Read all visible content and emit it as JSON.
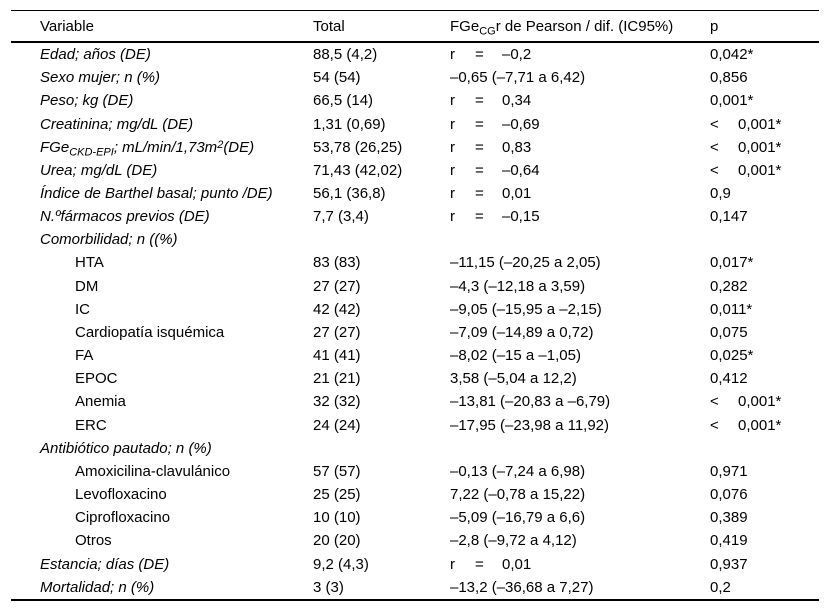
{
  "table": {
    "columns": [
      {
        "id": "variable",
        "label_parts": [
          {
            "t": "Variable"
          }
        ]
      },
      {
        "id": "total",
        "label_parts": [
          {
            "t": "Total"
          }
        ]
      },
      {
        "id": "pearson",
        "label_parts": [
          {
            "t": "FGe"
          },
          {
            "t": "CG",
            "style": "sub"
          },
          {
            "t": "r de Pearson / dif. (IC95%)"
          }
        ]
      },
      {
        "id": "p",
        "label_parts": [
          {
            "t": "p"
          }
        ]
      }
    ],
    "rows": [
      {
        "variable_parts": [
          {
            "t": "Edad; años (DE)"
          }
        ],
        "italic": true,
        "indent": false,
        "total": "88,5 (4,2)",
        "pearson": {
          "r": "r",
          "eq": "=",
          "value": "–0,2"
        },
        "p_parts": [
          "0,042*"
        ]
      },
      {
        "variable_parts": [
          {
            "t": "Sexo mujer; n (%)"
          }
        ],
        "italic": true,
        "indent": false,
        "total": "54 (54)",
        "pearson": {
          "dif": "–0,65 (–7,71 a 6,42)"
        },
        "p_parts": [
          "0,856"
        ]
      },
      {
        "variable_parts": [
          {
            "t": "Peso; kg (DE)"
          }
        ],
        "italic": true,
        "indent": false,
        "total": "66,5 (14)",
        "pearson": {
          "r": "r",
          "eq": "=",
          "value": "0,34"
        },
        "p_parts": [
          "0,001*"
        ]
      },
      {
        "variable_parts": [
          {
            "t": "Creatinina; mg/dL (DE)"
          }
        ],
        "italic": true,
        "indent": false,
        "total": "1,31 (0,69)",
        "pearson": {
          "r": "r",
          "eq": "=",
          "value": "–0,69"
        },
        "p_parts": [
          "<",
          "0,001*"
        ]
      },
      {
        "variable_parts": [
          {
            "t": "FGe"
          },
          {
            "t": "CKD-EPI",
            "style": "sub"
          },
          {
            "t": "; mL/min/1,73m"
          },
          {
            "t": "2",
            "style": "sup"
          },
          {
            "t": "(DE)"
          }
        ],
        "italic": true,
        "indent": false,
        "total": "53,78 (26,25)",
        "pearson": {
          "r": "r",
          "eq": "=",
          "value": "0,83"
        },
        "p_parts": [
          "<",
          "0,001*"
        ]
      },
      {
        "variable_parts": [
          {
            "t": "Urea; mg/dL (DE)"
          }
        ],
        "italic": true,
        "indent": false,
        "total": "71,43 (42,02)",
        "pearson": {
          "r": "r",
          "eq": "=",
          "value": "–0,64"
        },
        "p_parts": [
          "<",
          "0,001*"
        ]
      },
      {
        "variable_parts": [
          {
            "t": "Índice de Barthel basal; punto /DE)"
          }
        ],
        "italic": true,
        "indent": false,
        "total": "56,1 (36,8)",
        "pearson": {
          "r": "r",
          "eq": "=",
          "value": "0,01"
        },
        "p_parts": [
          "0,9"
        ]
      },
      {
        "variable_parts": [
          {
            "t": "N.ºfármacos previos (DE)"
          }
        ],
        "italic": true,
        "indent": false,
        "total": "7,7 (3,4)",
        "pearson": {
          "r": "r",
          "eq": "=",
          "value": "–0,15"
        },
        "p_parts": [
          "0,147"
        ]
      },
      {
        "variable_parts": [
          {
            "t": "Comorbilidad; n ((%)"
          }
        ],
        "italic": true,
        "indent": false,
        "total": "",
        "pearson": null,
        "p_parts": []
      },
      {
        "variable_parts": [
          {
            "t": "HTA"
          }
        ],
        "italic": false,
        "indent": true,
        "total": "83 (83)",
        "pearson": {
          "dif": "–11,15 (–20,25 a 2,05)"
        },
        "p_parts": [
          "0,017*"
        ]
      },
      {
        "variable_parts": [
          {
            "t": "DM"
          }
        ],
        "italic": false,
        "indent": true,
        "total": "27 (27)",
        "pearson": {
          "dif": "–4,3 (–12,18 a 3,59)"
        },
        "p_parts": [
          "0,282"
        ]
      },
      {
        "variable_parts": [
          {
            "t": "IC"
          }
        ],
        "italic": false,
        "indent": true,
        "total": "42 (42)",
        "pearson": {
          "dif": "–9,05 (–15,95 a –2,15)"
        },
        "p_parts": [
          "0,011*"
        ]
      },
      {
        "variable_parts": [
          {
            "t": "Cardiopatía isquémica"
          }
        ],
        "italic": false,
        "indent": true,
        "total": "27 (27)",
        "pearson": {
          "dif": "–7,09 (–14,89 a 0,72)"
        },
        "p_parts": [
          "0,075"
        ]
      },
      {
        "variable_parts": [
          {
            "t": "FA"
          }
        ],
        "italic": false,
        "indent": true,
        "total": "41 (41)",
        "pearson": {
          "dif": "–8,02 (–15 a –1,05)"
        },
        "p_parts": [
          "0,025*"
        ]
      },
      {
        "variable_parts": [
          {
            "t": "EPOC"
          }
        ],
        "italic": false,
        "indent": true,
        "total": "21 (21)",
        "pearson": {
          "dif": "3,58 (–5,04 a 12,2)"
        },
        "p_parts": [
          "0,412"
        ]
      },
      {
        "variable_parts": [
          {
            "t": "Anemia"
          }
        ],
        "italic": false,
        "indent": true,
        "total": "32 (32)",
        "pearson": {
          "dif": "–13,81 (–20,83 a –6,79)"
        },
        "p_parts": [
          "<",
          "0,001*"
        ]
      },
      {
        "variable_parts": [
          {
            "t": "ERC"
          }
        ],
        "italic": false,
        "indent": true,
        "total": "24 (24)",
        "pearson": {
          "dif": "–17,95 (–23,98 a 11,92)"
        },
        "p_parts": [
          "<",
          "0,001*"
        ]
      },
      {
        "variable_parts": [
          {
            "t": "Antibiótico pautado; n (%)"
          }
        ],
        "italic": true,
        "indent": false,
        "total": "",
        "pearson": null,
        "p_parts": []
      },
      {
        "variable_parts": [
          {
            "t": "Amoxicilina-clavulánico"
          }
        ],
        "italic": false,
        "indent": true,
        "total": "57 (57)",
        "pearson": {
          "dif": "–0,13 (–7,24 a 6,98)"
        },
        "p_parts": [
          "0,971"
        ]
      },
      {
        "variable_parts": [
          {
            "t": "Levofloxacino"
          }
        ],
        "italic": false,
        "indent": true,
        "total": "25 (25)",
        "pearson": {
          "dif": "7,22 (–0,78 a 15,22)"
        },
        "p_parts": [
          "0,076"
        ]
      },
      {
        "variable_parts": [
          {
            "t": "Ciprofloxacino"
          }
        ],
        "italic": false,
        "indent": true,
        "total": "10 (10)",
        "pearson": {
          "dif": "–5,09 (–16,79 a 6,6)"
        },
        "p_parts": [
          "0,389"
        ]
      },
      {
        "variable_parts": [
          {
            "t": "Otros"
          }
        ],
        "italic": false,
        "indent": true,
        "total": "20 (20)",
        "pearson": {
          "dif": "–2,8 (–9,72 a 4,12)"
        },
        "p_parts": [
          "0,419"
        ]
      },
      {
        "variable_parts": [
          {
            "t": "Estancia; días (DE)"
          }
        ],
        "italic": true,
        "indent": false,
        "total": "9,2 (4,3)",
        "pearson": {
          "r": "r",
          "eq": "=",
          "value": "0,01"
        },
        "p_parts": [
          "0,937"
        ]
      },
      {
        "variable_parts": [
          {
            "t": "Mortalidad; n (%)"
          }
        ],
        "italic": true,
        "indent": false,
        "total": "3 (3)",
        "pearson": {
          "dif": "–13,2 (–36,68 a 7,27)"
        },
        "p_parts": [
          "0,2"
        ]
      }
    ],
    "text_color": "#000000",
    "rule_color": "#000000",
    "background_color": "#ffffff"
  }
}
